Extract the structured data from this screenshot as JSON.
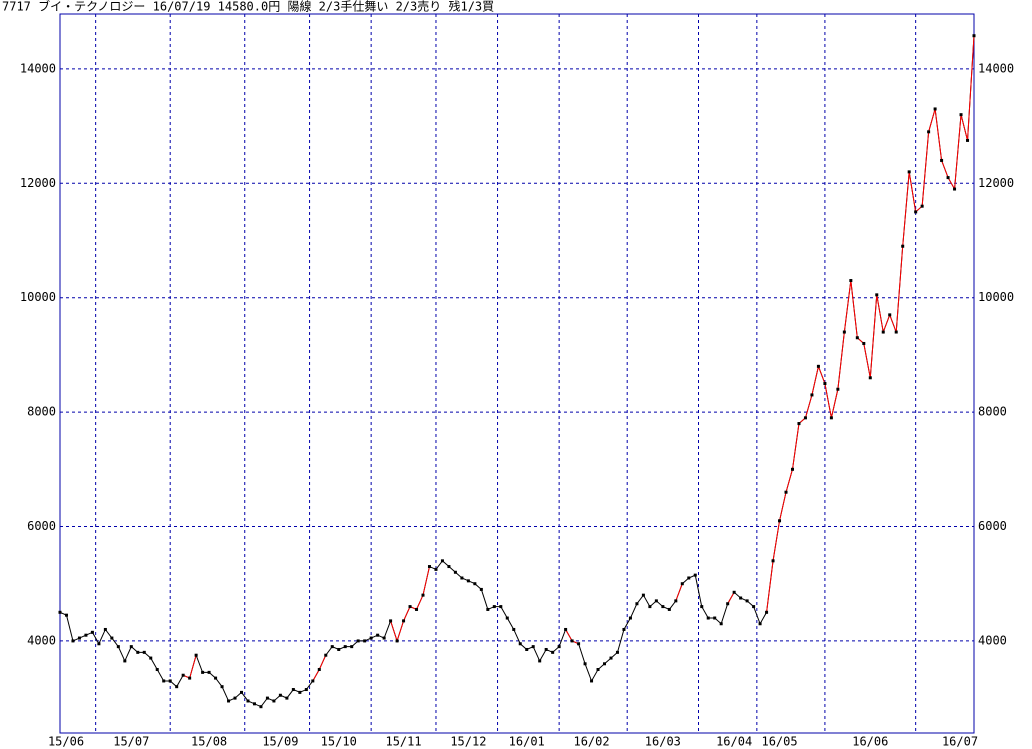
{
  "chart_data": {
    "type": "line",
    "title": "7717 ブイ・テクノロジー 16/07/19 14580.0円 陽線 2/3手仕舞い 2/3売り 残1/3買",
    "categories": [
      "15/06",
      null,
      null,
      null,
      null,
      null,
      null,
      null,
      null,
      null,
      null,
      "15/07",
      null,
      null,
      null,
      null,
      null,
      null,
      null,
      null,
      null,
      null,
      null,
      "15/08",
      null,
      null,
      null,
      null,
      null,
      null,
      null,
      null,
      null,
      null,
      "15/09",
      null,
      null,
      null,
      null,
      null,
      null,
      null,
      null,
      "15/10",
      null,
      null,
      null,
      null,
      null,
      null,
      null,
      null,
      null,
      "15/11",
      null,
      null,
      null,
      null,
      null,
      null,
      null,
      null,
      null,
      "15/12",
      null,
      null,
      null,
      null,
      null,
      null,
      null,
      null,
      "16/01",
      null,
      null,
      null,
      null,
      null,
      null,
      null,
      null,
      null,
      "16/02",
      null,
      null,
      null,
      null,
      null,
      null,
      null,
      null,
      null,
      null,
      "16/03",
      null,
      null,
      null,
      null,
      null,
      null,
      null,
      null,
      null,
      null,
      "16/04",
      null,
      null,
      null,
      null,
      null,
      null,
      "16/05",
      null,
      null,
      null,
      null,
      null,
      null,
      null,
      null,
      null,
      null,
      null,
      null,
      null,
      "16/06",
      null,
      null,
      null,
      null,
      null,
      null,
      null,
      null,
      null,
      null,
      null,
      null,
      null,
      "16/07",
      null,
      null
    ],
    "series": [
      {
        "color": "#000000",
        "values": [
          4500,
          4450,
          4000,
          4050,
          4100,
          4150,
          3950,
          4200,
          4050,
          3900,
          3650,
          3900,
          3800,
          3800,
          3700,
          3500,
          3300,
          3300,
          3200,
          3400,
          3350,
          3750,
          3450,
          3450,
          3350,
          3200,
          2950,
          3000,
          3100,
          2950,
          2900,
          2850,
          3000,
          2950,
          3050,
          3000,
          3150,
          3100,
          3150,
          3300,
          3500,
          3750,
          3900,
          3850,
          3900,
          3900,
          4000,
          4000,
          4050,
          4100,
          4050,
          4350,
          4000,
          4350,
          4600,
          4550,
          4800,
          5300,
          5250,
          5400,
          5300,
          5200,
          5100,
          5050,
          5000,
          4900,
          4550,
          4600,
          4600,
          4400,
          4200,
          3950,
          3850,
          3900,
          3650,
          3850,
          3800,
          3900,
          4200,
          4000,
          3950,
          3600,
          3300,
          3500,
          3600,
          3700,
          3800,
          4200,
          4400,
          4650,
          4800,
          4600,
          4700,
          4600,
          4550,
          4700,
          5000,
          5100,
          5150,
          4600,
          4400,
          4400,
          4300,
          4650,
          4850,
          4750,
          4700,
          4600,
          4300,
          4500,
          5400,
          6100,
          6600,
          7000,
          7800,
          7900,
          8300,
          8800,
          8500,
          7900,
          8400,
          9400,
          10300,
          9300,
          9200,
          8600,
          10050,
          9400,
          9700,
          9400,
          10900,
          12200,
          11500,
          11600,
          12900,
          13300,
          12400,
          12100,
          11900,
          13200,
          12750,
          14580
        ]
      },
      {
        "color": "#ff0000",
        "values": [
          null,
          null,
          null,
          null,
          null,
          null,
          null,
          null,
          null,
          null,
          null,
          null,
          null,
          null,
          null,
          null,
          null,
          null,
          null,
          3400,
          3350,
          3750,
          null,
          null,
          null,
          null,
          null,
          null,
          null,
          null,
          null,
          null,
          null,
          null,
          null,
          null,
          null,
          null,
          null,
          3300,
          3500,
          3750,
          null,
          null,
          null,
          null,
          null,
          null,
          null,
          null,
          null,
          4350,
          4000,
          4350,
          4600,
          4550,
          4800,
          5300,
          null,
          null,
          null,
          null,
          null,
          null,
          null,
          null,
          null,
          null,
          null,
          null,
          null,
          null,
          null,
          null,
          null,
          null,
          null,
          null,
          4200,
          4000,
          3950,
          null,
          null,
          null,
          null,
          null,
          null,
          null,
          null,
          null,
          null,
          null,
          null,
          null,
          null,
          4700,
          5000,
          null,
          null,
          null,
          null,
          null,
          null,
          4650,
          4850,
          null,
          null,
          null,
          null,
          4500,
          5400,
          6100,
          6600,
          7000,
          7800,
          7900,
          8300,
          8800,
          8500,
          7900,
          8400,
          9400,
          10300,
          9300,
          9200,
          8600,
          10050,
          9400,
          9700,
          9400,
          10900,
          12200,
          11500,
          11600,
          12900,
          13300,
          12400,
          12100,
          11900,
          13200,
          12750,
          14580
        ]
      }
    ],
    "ylim": [
      2390,
      14960
    ],
    "yticks": [
      4000,
      6000,
      8000,
      10000,
      12000,
      14000
    ],
    "grid": true,
    "grid_color": "#0000aa"
  }
}
